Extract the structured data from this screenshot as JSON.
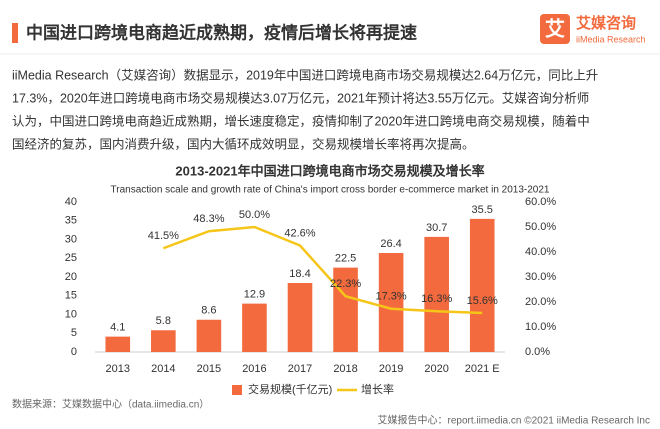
{
  "header": {
    "title": "中国进口跨境电商趋近成熟期，疫情后增长将再提速"
  },
  "logo": {
    "icon": "艾",
    "name": "艾媒咨询",
    "subtitle": "iiMedia Research"
  },
  "paragraph": [
    "iiMedia Research（艾媒咨询）数据显示，2019年中国进口跨境电商市场交易规模达2.64万亿元，同比上升",
    "17.3%，2020年进口跨境电商市场交易规模达3.07万亿元，2021年预计将达3.55万亿元。艾媒咨询分析师",
    "认为，中国进口跨境电商趋近成熟期，增长速度稳定，疫情抑制了2020年进口跨境电商交易规模，随着中",
    "国经济的复苏，国内消费升级，国内大循环成效明显，交易规模增长率将再次提高。"
  ],
  "chart_data": {
    "type": "bar",
    "title": "2013-2021年中国进口跨境电商市场交易规模及增长率",
    "subtitle": "Transaction scale and growth rate of China's import cross border e-commerce market in 2013-2021",
    "categories": [
      "2013",
      "2014",
      "2015",
      "2016",
      "2017",
      "2018",
      "2019",
      "2020",
      "2021 E"
    ],
    "series": [
      {
        "name": "交易规模(千亿元)",
        "type": "bar",
        "color": "#f26a3d",
        "values": [
          4.1,
          5.8,
          8.6,
          12.9,
          18.4,
          22.5,
          26.4,
          30.7,
          35.5
        ]
      },
      {
        "name": "增长率",
        "type": "line",
        "axis": "y2",
        "color": "#f5c518",
        "values": [
          null,
          41.5,
          48.3,
          50.0,
          42.6,
          22.3,
          17.3,
          16.3,
          15.6
        ],
        "value_labels": [
          null,
          "41.5%",
          "48.3%",
          "50.0%",
          "42.6%",
          "22.3%",
          "17.3%",
          "16.3%",
          "15.6%"
        ]
      }
    ],
    "ylim": [
      0,
      40
    ],
    "yticks": [
      0,
      5,
      10,
      15,
      20,
      25,
      30,
      35,
      40
    ],
    "y2lim": [
      0,
      60
    ],
    "y2ticks": [
      {
        "value": 0,
        "label": "0.0%"
      },
      {
        "value": 10,
        "label": "10.0%"
      },
      {
        "value": 20,
        "label": "20.0%"
      },
      {
        "value": 30,
        "label": "30.0%"
      },
      {
        "value": 40,
        "label": "40.0%"
      },
      {
        "value": 50,
        "label": "50.0%"
      },
      {
        "value": 60,
        "label": "60.0%"
      }
    ],
    "legend": "bottom"
  },
  "source": "数据来源：艾媒数据中心（data.iimedia.cn）",
  "footer": "艾媒报告中心：report.iimedia.cn ©2021 iiMedia Research Inc"
}
